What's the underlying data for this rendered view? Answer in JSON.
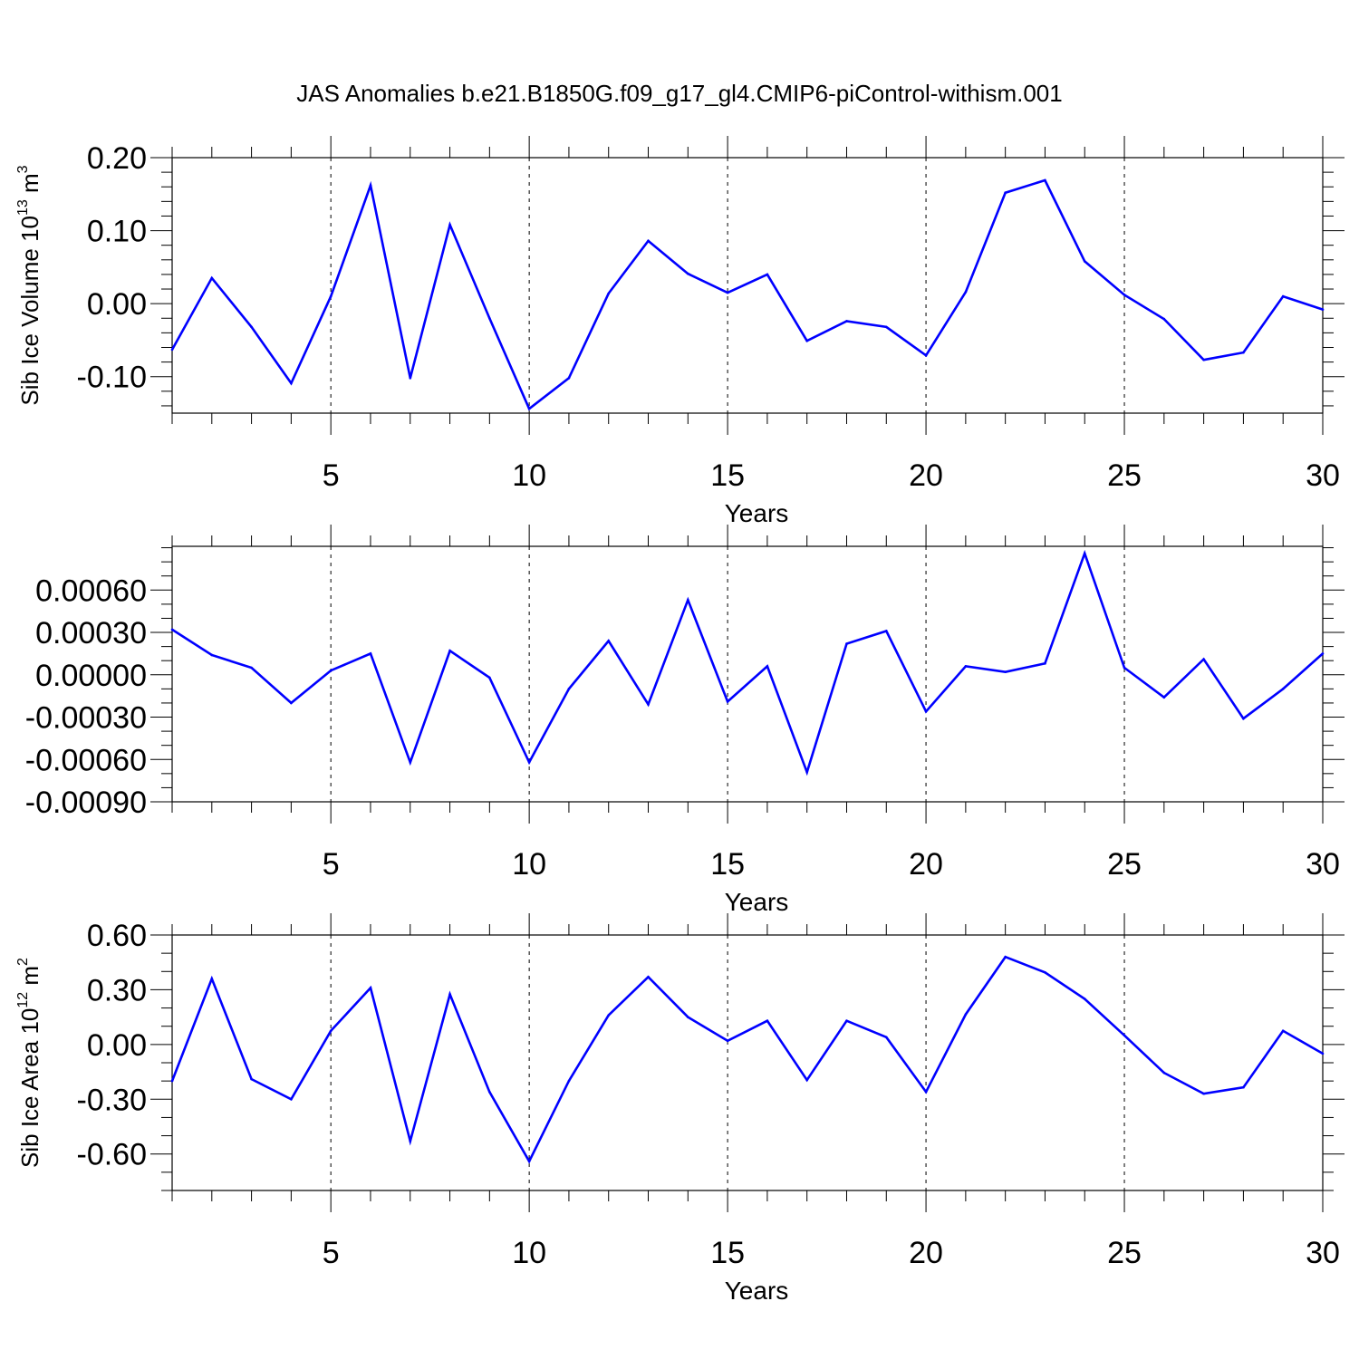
{
  "figure": {
    "title": "JAS Anomalies b.e21.B1850G.f09_g17_gl4.CMIP6-piControl-withism.001",
    "line_color": "#0000ff"
  },
  "chart_data": [
    {
      "type": "line",
      "title": "",
      "xlabel": "Years",
      "ylabel": {
        "text": "Sib Ice Volume 10",
        "sup": "13",
        "unit": " m",
        "unit_sup": "3"
      },
      "xlim": [
        1,
        30
      ],
      "ylim": [
        -0.15,
        0.2
      ],
      "x_ticks": [
        5,
        10,
        15,
        20,
        25,
        30
      ],
      "y_ticks": [
        {
          "value": 0.2,
          "label": "0.20"
        },
        {
          "value": 0.1,
          "label": "0.10"
        },
        {
          "value": 0.0,
          "label": "0.00"
        },
        {
          "value": -0.1,
          "label": "-0.10"
        }
      ],
      "y_minor_step": 0.02,
      "grid_x": [
        5,
        10,
        15,
        20,
        25
      ],
      "x": [
        1,
        2,
        3,
        4,
        5,
        6,
        7,
        8,
        9,
        10,
        11,
        12,
        13,
        14,
        15,
        16,
        17,
        18,
        19,
        20,
        21,
        22,
        23,
        24,
        25,
        26,
        27,
        28,
        29,
        30
      ],
      "values": [
        -0.063,
        0.035,
        -0.032,
        -0.109,
        0.01,
        0.162,
        -0.102,
        0.108,
        -0.02,
        -0.144,
        -0.102,
        0.014,
        0.086,
        0.041,
        0.015,
        0.04,
        -0.051,
        -0.024,
        -0.032,
        -0.071,
        0.016,
        0.152,
        0.169,
        0.058,
        0.012,
        -0.021,
        -0.077,
        -0.067,
        0.01,
        -0.008
      ]
    },
    {
      "type": "line",
      "title": "",
      "xlabel": "Years",
      "ylabel": null,
      "xlim": [
        1,
        30
      ],
      "ylim": [
        -0.0009,
        0.00091
      ],
      "x_ticks": [
        5,
        10,
        15,
        20,
        25,
        30
      ],
      "y_ticks": [
        {
          "value": 0.0006,
          "label": "0.00060"
        },
        {
          "value": 0.0003,
          "label": "0.00030"
        },
        {
          "value": 0.0,
          "label": "0.00000"
        },
        {
          "value": -0.0003,
          "label": "-0.00030"
        },
        {
          "value": -0.0006,
          "label": "-0.00060"
        },
        {
          "value": -0.0009,
          "label": "-0.00090"
        }
      ],
      "y_minor_step": 0.0001,
      "grid_x": [
        5,
        10,
        15,
        20,
        25
      ],
      "x": [
        1,
        2,
        3,
        4,
        5,
        6,
        7,
        8,
        9,
        10,
        11,
        12,
        13,
        14,
        15,
        16,
        17,
        18,
        19,
        20,
        21,
        22,
        23,
        24,
        25,
        26,
        27,
        28,
        29,
        30
      ],
      "values": [
        0.00032,
        0.00014,
        5e-05,
        -0.0002,
        3e-05,
        0.00015,
        -0.00062,
        0.00017,
        -2e-05,
        -0.00062,
        -0.0001,
        0.00024,
        -0.00021,
        0.00053,
        -0.00019,
        6e-05,
        -0.00069,
        0.00022,
        0.00031,
        -0.00026,
        6e-05,
        2e-05,
        8e-05,
        0.00086,
        5e-05,
        -0.00016,
        0.00011,
        -0.00031,
        -0.0001,
        0.00015
      ]
    },
    {
      "type": "line",
      "title": "",
      "xlabel": "Years",
      "ylabel": {
        "text": "Sib Ice Area 10",
        "sup": "12",
        "unit": " m",
        "unit_sup": "2"
      },
      "xlim": [
        1,
        30
      ],
      "ylim": [
        -0.8,
        0.6
      ],
      "x_ticks": [
        5,
        10,
        15,
        20,
        25,
        30
      ],
      "y_ticks": [
        {
          "value": 0.6,
          "label": "0.60"
        },
        {
          "value": 0.3,
          "label": "0.30"
        },
        {
          "value": 0.0,
          "label": "0.00"
        },
        {
          "value": -0.3,
          "label": "-0.30"
        },
        {
          "value": -0.6,
          "label": "-0.60"
        }
      ],
      "y_minor_step": 0.1,
      "grid_x": [
        5,
        10,
        15,
        20,
        25
      ],
      "x": [
        1,
        2,
        3,
        4,
        5,
        6,
        7,
        8,
        9,
        10,
        11,
        12,
        13,
        14,
        15,
        16,
        17,
        18,
        19,
        20,
        21,
        22,
        23,
        24,
        25,
        26,
        27,
        28,
        29,
        30
      ],
      "values": [
        -0.2,
        0.36,
        -0.19,
        -0.3,
        0.075,
        0.31,
        -0.53,
        0.275,
        -0.26,
        -0.64,
        -0.2,
        0.16,
        0.37,
        0.15,
        0.02,
        0.13,
        -0.195,
        0.13,
        0.04,
        -0.26,
        0.165,
        0.48,
        0.395,
        0.25,
        0.05,
        -0.155,
        -0.27,
        -0.235,
        0.075,
        -0.05
      ]
    }
  ]
}
